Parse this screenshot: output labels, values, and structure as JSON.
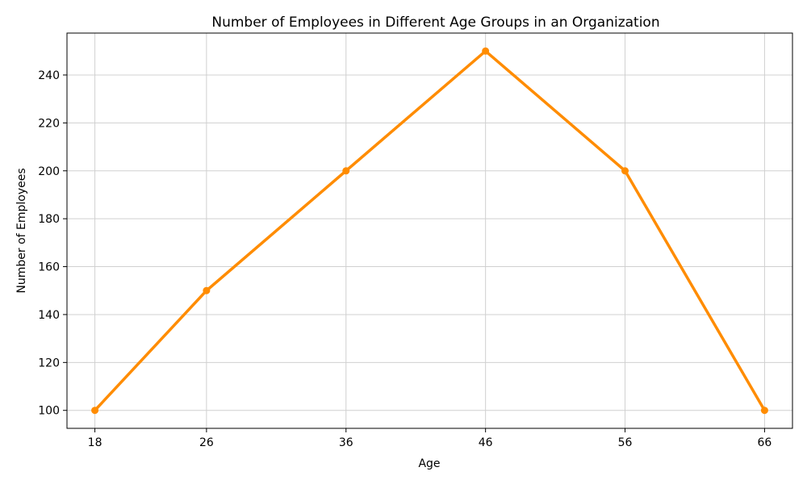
{
  "chart_data": {
    "type": "line",
    "title": "Number of Employees in Different Age Groups in an Organization",
    "xlabel": "Age",
    "ylabel": "Number of Employees",
    "x": [
      18,
      26,
      36,
      46,
      56,
      66
    ],
    "x_ticks": [
      18,
      26,
      36,
      46,
      56,
      66
    ],
    "y_ticks": [
      100,
      120,
      140,
      160,
      180,
      200,
      220,
      240
    ],
    "xlim": [
      16.0,
      68.0
    ],
    "ylim": [
      92.5,
      257.5
    ],
    "grid": true,
    "series": [
      {
        "values": [
          100,
          150,
          200,
          250,
          200,
          100
        ],
        "color": "#ff8c00",
        "marker": "circle"
      }
    ]
  }
}
